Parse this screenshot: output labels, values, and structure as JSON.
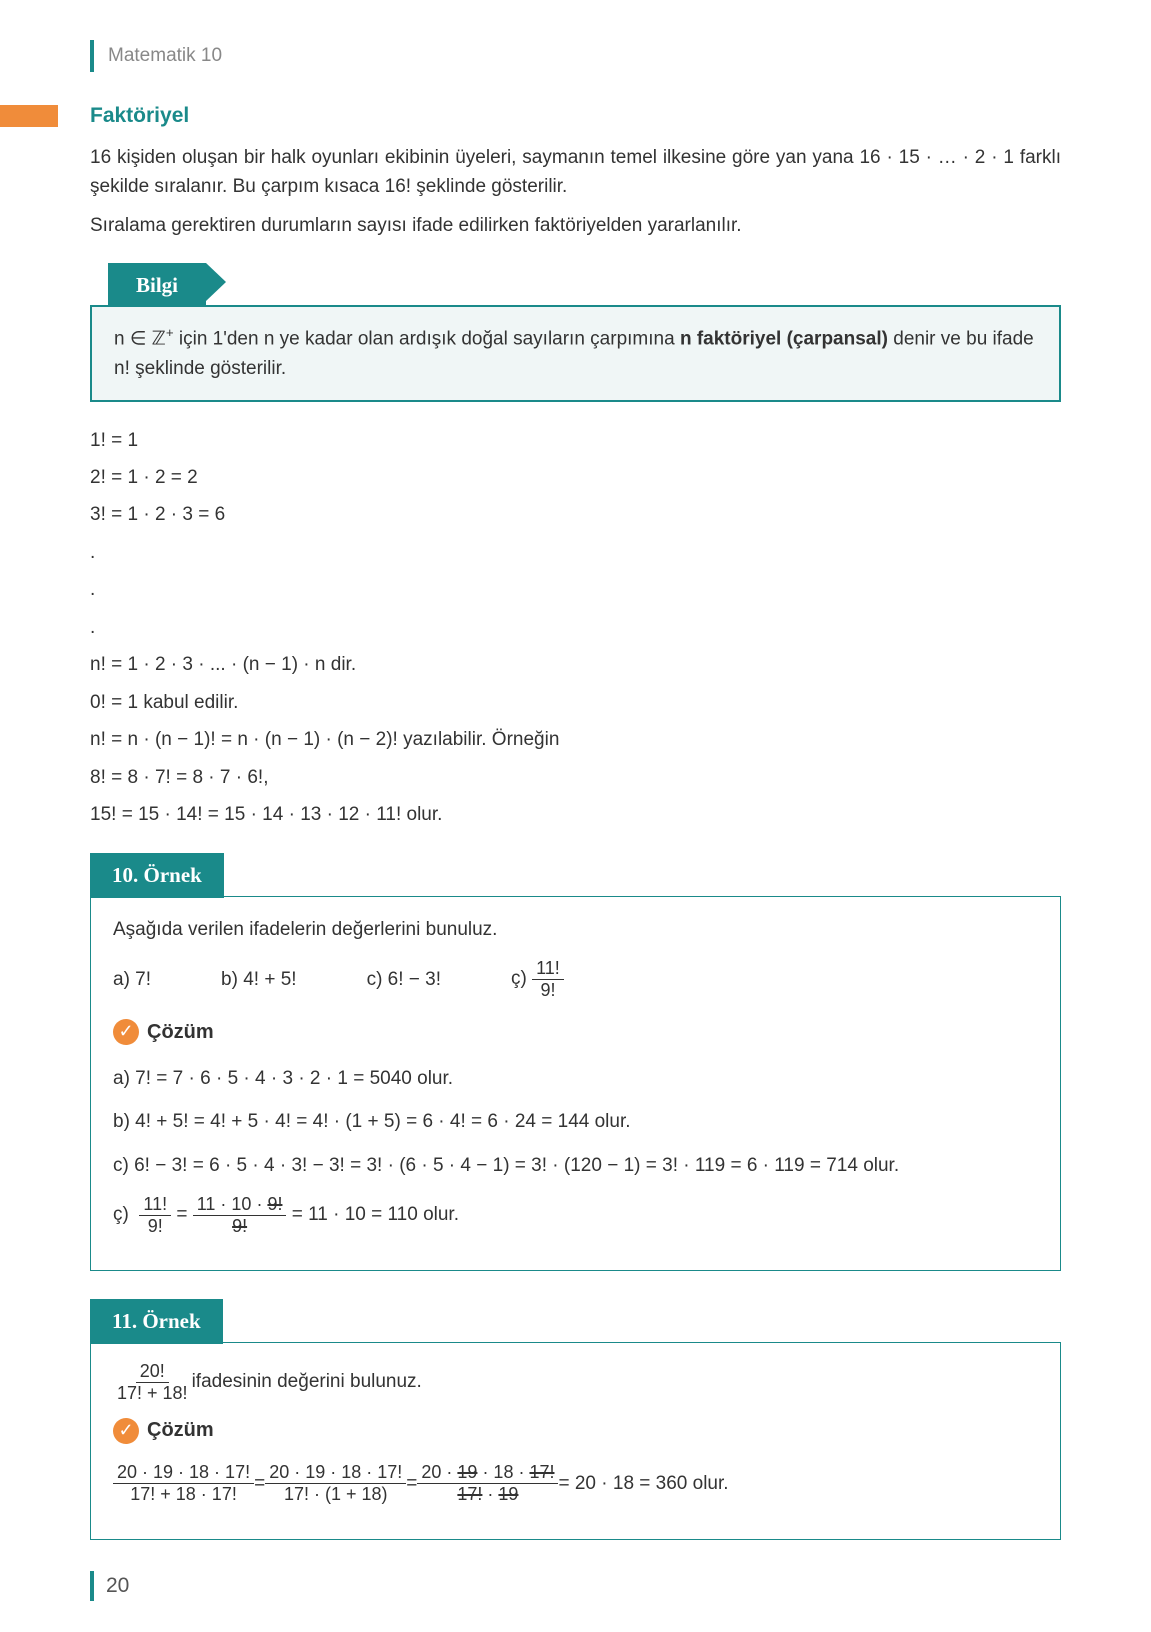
{
  "header": {
    "subject": "Matematik 10"
  },
  "page_number": "20",
  "colors": {
    "teal": "#1a8a8a",
    "orange": "#f08c3a",
    "text": "#333333",
    "header_gray": "#888888",
    "bilgi_bg": "#f0f6f6"
  },
  "section": {
    "title": "Faktöriyel",
    "intro1": "16 kişiden oluşan bir halk oyunları ekibinin üyeleri, saymanın temel ilkesine göre yan yana 16 · 15 · … · 2 · 1 farklı şekilde sıralanır. Bu çarpım kısaca 16! şeklinde gösterilir.",
    "intro2": "Sıralama gerektiren durumların sayısı ifade edilirken faktöriyelden yararlanılır."
  },
  "bilgi": {
    "label": "Bilgi",
    "text_prefix": "n ∈ ℤ",
    "text_mid": " için 1'den n ye kadar olan ardışık doğal sayıların çarpımına ",
    "bold": "n faktöriyel (çarpansal)",
    "text_suffix": " denir ve bu ifade n! şeklinde gösterilir."
  },
  "factorial_lines": {
    "l1": "1! = 1",
    "l2": "2! = 1 · 2 = 2",
    "l3": "3! = 1 · 2 · 3 = 6",
    "dot": ".",
    "ln": "n! = 1 · 2 · 3 · ... · (n − 1) · n dir.",
    "l0": "0! = 1 kabul edilir.",
    "lrec": "n! = n · (n − 1)! = n · (n − 1) · (n − 2)! yazılabilir. Örneğin",
    "l8": "8! = 8 · 7! = 8 · 7 · 6!,",
    "l15": "15! = 15 · 14! = 15 · 14 · 13 · 12 · 11! olur."
  },
  "ornek10": {
    "label": "10. Örnek",
    "question": "Aşağıda verilen ifadelerin değerlerini bunuluz.",
    "qa": "a) 7!",
    "qb": "b) 4! + 5!",
    "qc": "c) 6! − 3!",
    "qc2_prefix": "ç)",
    "qc2_num": "11!",
    "qc2_den": "9!",
    "cozum": "Çözüm",
    "sa": "a)  7! = 7 · 6 · 5 · 4 · 3 · 2 · 1 = 5040 olur.",
    "sb": "b)  4! + 5! = 4! + 5 · 4! = 4! · (1 + 5) = 6 · 4! = 6 · 24 = 144 olur.",
    "sc": "c)  6! − 3! = 6 · 5 · 4 · 3! − 3! = 3! · (6 · 5 · 4 − 1) = 3! · (120 − 1) = 3! · 119 = 6 · 119 = 714 olur.",
    "sc2_prefix": "ç)",
    "sc2_f1_num": "11!",
    "sc2_f1_den": "9!",
    "sc2_eq1": " = ",
    "sc2_f2_num_a": "11 · 10 · ",
    "sc2_f2_num_strike": "9!",
    "sc2_f2_den_strike": "9!",
    "sc2_tail": " = 11 · 10 = 110  olur."
  },
  "ornek11": {
    "label": "11. Örnek",
    "q_num": "20!",
    "q_den": "17! + 18!",
    "q_tail": "  ifadesinin değerini bulunuz.",
    "cozum": "Çözüm",
    "f1_num": "20 · 19 · 18 · 17!",
    "f1_den": "17! + 18 · 17!",
    "eq": " = ",
    "f2_num": "20 · 19 · 18 · 17!",
    "f2_den": "17! · (1 + 18)",
    "f3_num_a": "20 · ",
    "f3_num_s1": "19",
    "f3_num_b": " · 18 · ",
    "f3_num_s2": "17!",
    "f3_den_s1": "17!",
    "f3_den_a": " · ",
    "f3_den_s2": "19",
    "tail": " = 20 · 18 = 360  olur."
  }
}
